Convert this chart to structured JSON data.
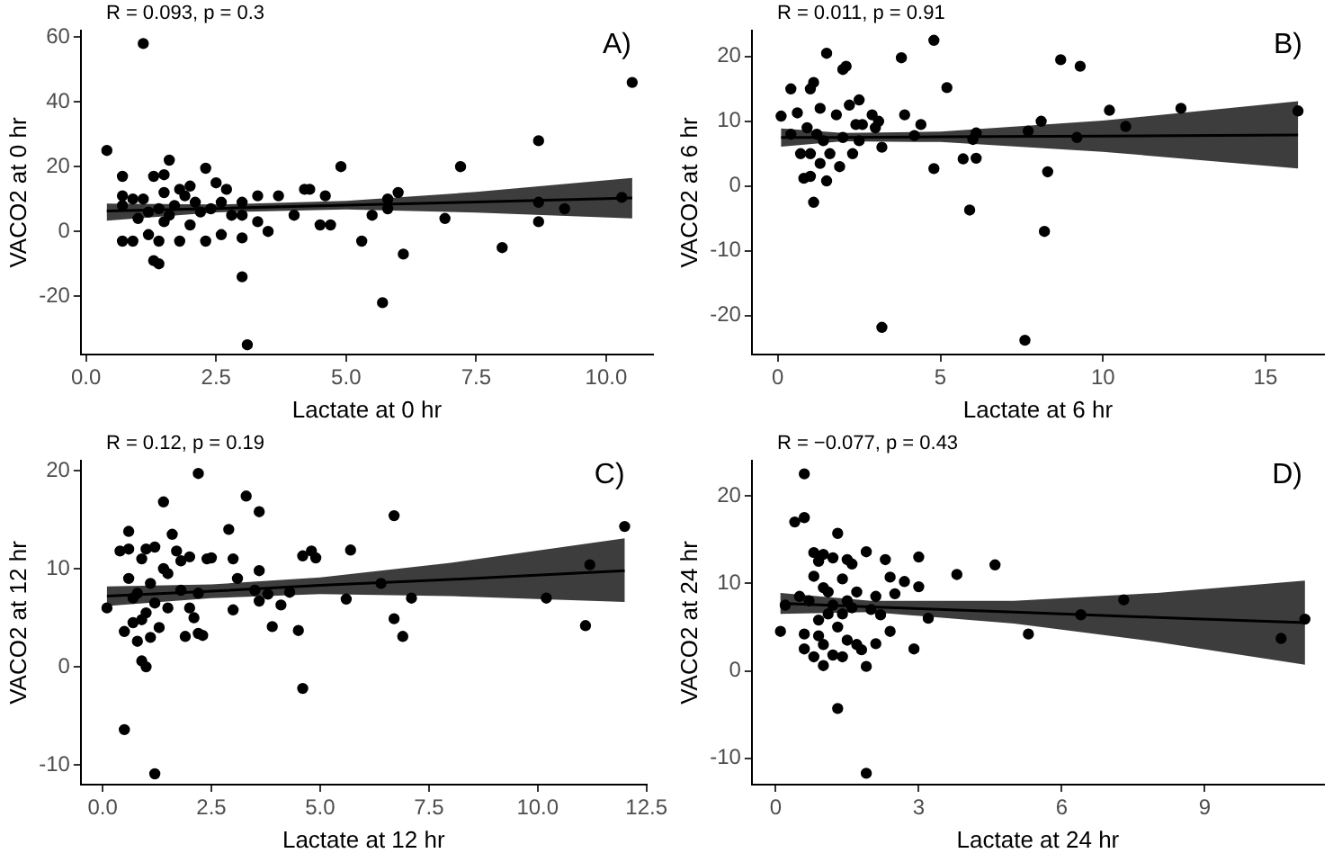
{
  "chart_data": [
    {
      "type": "scatter",
      "xlabel": "Lactate at 0 hr",
      "ylabel": "VACO2 at 0 hr",
      "annotations": [
        "R = 0.093, p = 0.3",
        "A)"
      ],
      "xlim": [
        -0.1,
        10.9
      ],
      "xticks": [
        {
          "value": 0,
          "label": "0.0"
        },
        2.5,
        {
          "value": 5,
          "label": "5.0"
        },
        7.5,
        {
          "value": 10,
          "label": "10.0"
        }
      ],
      "ylim": [
        -38,
        62
      ],
      "yticks": [
        -20,
        0,
        20,
        40,
        60
      ],
      "grid": false,
      "legend": false,
      "series": [
        {
          "type": "scatter",
          "color": "#000000",
          "marker": "circle",
          "x": [
            1.1,
            0.4,
            10.5,
            8.7,
            4.9,
            7.2,
            2.3,
            1.6,
            0.7,
            1.3,
            1.5,
            2.5,
            2.0,
            1.8,
            4.3,
            4.2,
            2.7,
            6.0,
            3.7,
            4.6,
            3.3,
            1.1,
            0.7,
            0.9,
            2.1,
            2.6,
            3.0,
            5.8,
            8.7,
            10.3,
            9.2,
            0.7,
            1.4,
            1.7,
            2.2,
            2.8,
            3.0,
            4.0,
            5.8,
            1.0,
            1.5,
            3.5,
            4.5,
            4.7,
            5.5,
            6.9,
            8.7,
            1.2,
            0.7,
            0.9,
            1.4,
            1.8,
            2.3,
            2.6,
            3.0,
            5.3,
            6.1,
            8.0,
            1.3,
            1.4,
            3.0,
            5.7,
            3.1,
            1.6,
            2.0,
            1.2,
            2.4,
            3.3,
            1.9,
            1.5
          ],
          "values": [
            58,
            25,
            46,
            28,
            20,
            20,
            19.5,
            22,
            17,
            17,
            17.5,
            15,
            14,
            13,
            13,
            13,
            13,
            12,
            11,
            11,
            11,
            10,
            11,
            10,
            9,
            9,
            9,
            10,
            9,
            10.5,
            7,
            8,
            7,
            8,
            6,
            5,
            5,
            5,
            7,
            4,
            3,
            0,
            2,
            2,
            5,
            4,
            3,
            -1,
            -3,
            -3,
            -3,
            -3,
            -3,
            -1,
            -2,
            -3,
            -7,
            -5,
            -9,
            -10,
            -14,
            -22,
            -35,
            5,
            2,
            6,
            7,
            3,
            11,
            12
          ]
        },
        {
          "type": "line",
          "color": "#000000",
          "marker": "none",
          "line_style": "solid",
          "x": [
            0.4,
            2.5,
            5,
            7.5,
            10.5
          ],
          "values": [
            6.3,
            7.1,
            8.1,
            9.1,
            10.3
          ],
          "lower": [
            3.3,
            5.9,
            6.8,
            5.8,
            4.0
          ],
          "upper": [
            8.6,
            8.3,
            9.4,
            12.2,
            16.5
          ]
        }
      ]
    },
    {
      "type": "scatter",
      "xlabel": "Lactate at 6 hr",
      "ylabel": "VACO2 at 6 hr",
      "annotations": [
        "R = 0.011, p = 0.91",
        "B)"
      ],
      "xlim": [
        -0.8,
        16.8
      ],
      "xticks": [
        0,
        5,
        10,
        15
      ],
      "ylim": [
        -26,
        24
      ],
      "yticks": [
        -20,
        -10,
        0,
        10,
        20
      ],
      "grid": false,
      "legend": false,
      "series": [
        {
          "type": "scatter",
          "color": "#000000",
          "marker": "circle",
          "x": [
            0.1,
            0.4,
            0.4,
            0.6,
            0.7,
            0.8,
            1.0,
            1.0,
            1.1,
            1.1,
            1.3,
            1.5,
            1.5,
            2.0,
            2.1,
            2.2,
            2.5,
            2.6,
            2.9,
            3.1,
            3.2,
            3.2,
            3.8,
            3.9,
            4.2,
            4.4,
            4.8,
            4.8,
            5.2,
            5.7,
            5.9,
            6.0,
            6.1,
            6.1,
            7.6,
            7.7,
            8.1,
            8.2,
            8.3,
            8.7,
            9.2,
            9.3,
            10.2,
            10.7,
            12.4,
            16,
            1.2,
            1.4,
            1.6,
            1.8,
            2.0,
            2.3,
            1.0,
            0.9,
            1.3,
            1.9,
            2.5,
            2.4,
            3.0
          ],
          "values": [
            10.8,
            15,
            8,
            11.3,
            5,
            1.2,
            1.5,
            15,
            16,
            -2.5,
            12,
            20.5,
            0.8,
            18,
            18.5,
            12.5,
            13.3,
            9.5,
            11,
            10,
            6,
            -21.8,
            19.8,
            11,
            7.8,
            9.5,
            22.5,
            2.7,
            15.2,
            4.2,
            -3.7,
            7.2,
            8.2,
            4.3,
            -23.8,
            8.5,
            10,
            -7,
            2.2,
            19.5,
            7.5,
            18.5,
            11.7,
            9.2,
            12,
            11.6,
            8,
            7,
            5,
            11,
            7.5,
            5,
            5,
            9,
            3.5,
            3,
            7,
            9.5,
            9
          ]
        },
        {
          "type": "line",
          "color": "#000000",
          "marker": "none",
          "line_style": "solid",
          "x": [
            0.1,
            2,
            5,
            10,
            16
          ],
          "values": [
            7.5,
            7.5,
            7.6,
            7.7,
            7.9
          ],
          "lower": [
            6.1,
            6.9,
            6.8,
            5.3,
            2.7
          ],
          "upper": [
            8.9,
            8.2,
            8.4,
            10.1,
            13.1
          ]
        }
      ]
    },
    {
      "type": "scatter",
      "xlabel": "Lactate at 12 hr",
      "ylabel": "VACO2 at 12 hr",
      "annotations": [
        "R = 0.12, p = 0.19",
        "C)"
      ],
      "xlim": [
        -0.5,
        12.5
      ],
      "xticks": [
        {
          "value": 0,
          "label": "0.0"
        },
        2.5,
        {
          "value": 5,
          "label": "5.0"
        },
        7.5,
        {
          "value": 10,
          "label": "10.0"
        },
        12.5
      ],
      "ylim": [
        -12,
        21
      ],
      "yticks": [
        -10,
        0,
        10,
        20
      ],
      "grid": false,
      "legend": false,
      "series": [
        {
          "type": "scatter",
          "color": "#000000",
          "marker": "circle",
          "x": [
            0.1,
            0.4,
            0.5,
            0.5,
            0.6,
            0.6,
            0.6,
            0.7,
            0.7,
            0.8,
            0.9,
            0.9,
            1.0,
            1.0,
            1.1,
            1.2,
            1.2,
            1.3,
            1.4,
            1.4,
            1.5,
            1.6,
            1.7,
            1.8,
            1.9,
            2.0,
            2.1,
            2.2,
            2.2,
            2.3,
            2.4,
            2.5,
            2.9,
            3.0,
            3.0,
            3.1,
            3.3,
            3.5,
            3.6,
            3.6,
            3.6,
            3.8,
            3.9,
            4.1,
            4.3,
            4.5,
            4.6,
            4.6,
            4.8,
            4.9,
            5.6,
            5.7,
            6.4,
            6.7,
            6.7,
            6.9,
            7.1,
            10.2,
            11.1,
            11.2,
            12,
            0.8,
            1.0,
            1.2,
            1.5,
            1.8,
            2.2,
            2.0,
            1.1,
            0.9
          ],
          "values": [
            6,
            11.8,
            -6.4,
            3.6,
            13.8,
            12,
            9,
            7,
            4.5,
            2.6,
            11,
            0.6,
            12,
            0,
            8.5,
            -10.9,
            12.2,
            4,
            16.8,
            10,
            9.5,
            13.5,
            11.8,
            10.8,
            3.1,
            11.2,
            5,
            19.7,
            3.4,
            3.2,
            11,
            11.1,
            14,
            11,
            5.8,
            9,
            17.4,
            7.8,
            15.8,
            9.8,
            6.7,
            7.4,
            4.1,
            6.3,
            7.6,
            3.7,
            11.3,
            -2.2,
            11.8,
            11.1,
            6.9,
            11.9,
            8.5,
            15.4,
            4.9,
            3.1,
            7,
            7,
            4.2,
            10.4,
            14.3,
            7.5,
            5.5,
            6.5,
            6,
            7.8,
            7.5,
            6,
            3,
            4.8
          ]
        },
        {
          "type": "line",
          "color": "#000000",
          "marker": "none",
          "line_style": "solid",
          "x": [
            0.1,
            2.5,
            5,
            8,
            12
          ],
          "values": [
            7.2,
            7.7,
            8.3,
            8.9,
            9.8
          ],
          "lower": [
            6.2,
            7.0,
            7.4,
            7.2,
            6.6
          ],
          "upper": [
            8.2,
            8.4,
            9.1,
            10.6,
            13.1
          ]
        }
      ]
    },
    {
      "type": "scatter",
      "xlabel": "Lactate at 24 hr",
      "ylabel": "VACO2 at 24 hr",
      "annotations": [
        "R = −0.077, p = 0.43",
        "D)"
      ],
      "xlim": [
        -0.5,
        11.5
      ],
      "xticks": [
        0,
        3,
        6,
        9
      ],
      "ylim": [
        -13,
        24
      ],
      "yticks": [
        -10,
        0,
        10,
        20
      ],
      "grid": false,
      "legend": false,
      "series": [
        {
          "type": "scatter",
          "color": "#000000",
          "marker": "circle",
          "x": [
            0.1,
            0.2,
            0.4,
            0.5,
            0.6,
            0.6,
            0.6,
            0.6,
            0.7,
            0.8,
            0.8,
            0.8,
            0.9,
            0.9,
            1.0,
            1.0,
            1.0,
            1.0,
            1.1,
            1.2,
            1.2,
            1.3,
            1.3,
            1.3,
            1.4,
            1.4,
            1.5,
            1.5,
            1.6,
            1.7,
            1.7,
            1.8,
            1.9,
            1.9,
            1.9,
            2.0,
            2.1,
            2.1,
            2.2,
            2.3,
            2.4,
            2.4,
            2.5,
            2.7,
            2.9,
            3.0,
            3.0,
            3.2,
            3.8,
            4.6,
            5.3,
            6.4,
            7.3,
            10.6,
            11.1,
            1.2,
            1.5,
            1.1,
            1.4,
            1.6,
            0.9
          ],
          "values": [
            4.5,
            7.5,
            17,
            8.5,
            22.5,
            17.5,
            4.2,
            2.5,
            8,
            13.5,
            10.8,
            1.6,
            12.5,
            4,
            13.3,
            9.5,
            0.6,
            3,
            6.5,
            12.9,
            1.8,
            15.7,
            -4.3,
            5,
            10.5,
            1.6,
            12.7,
            3.5,
            12.2,
            9,
            3,
            2.4,
            13.6,
            0.5,
            -11.7,
            7,
            8.5,
            3.1,
            6.4,
            12.7,
            10.7,
            4.5,
            8.8,
            10.2,
            2.5,
            13,
            9.6,
            6,
            11,
            12.1,
            4.2,
            6.4,
            8.1,
            3.7,
            5.9,
            7.5,
            8,
            9,
            6.5,
            7.2,
            5.8
          ]
        },
        {
          "type": "line",
          "color": "#000000",
          "marker": "none",
          "line_style": "solid",
          "x": [
            0.1,
            2,
            5,
            8,
            11.1
          ],
          "values": [
            7.7,
            7.3,
            6.7,
            6.1,
            5.5
          ],
          "lower": [
            6.5,
            6.7,
            5.4,
            3.3,
            0.7
          ],
          "upper": [
            8.9,
            8.0,
            8.0,
            8.9,
            10.3
          ]
        }
      ]
    }
  ]
}
